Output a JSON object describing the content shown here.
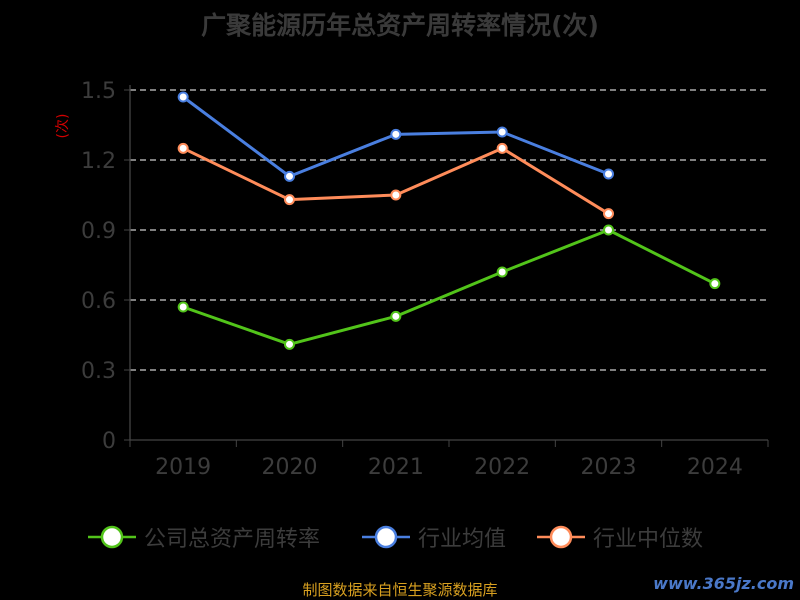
{
  "chart_data": {
    "type": "line",
    "title": "广聚能源历年总资产周转率情况(次)",
    "ylabel": "(次)",
    "categories": [
      "2019",
      "2020",
      "2021",
      "2022",
      "2023",
      "2024"
    ],
    "ylim": [
      0,
      1.5
    ],
    "yticks": [
      "0",
      "0.3",
      "0.6",
      "0.9",
      "1.2",
      "1.5"
    ],
    "grid": true,
    "legend_position": "bottom",
    "series": [
      {
        "name": "公司总资产周转率",
        "color": "#52c41a",
        "values": [
          0.57,
          0.41,
          0.53,
          0.72,
          0.9,
          0.67
        ]
      },
      {
        "name": "行业均值",
        "color": "#4a7fe0",
        "values": [
          1.47,
          1.13,
          1.31,
          1.32,
          1.14,
          null
        ]
      },
      {
        "name": "行业中位数",
        "color": "#ff8c5a",
        "values": [
          1.25,
          1.03,
          1.05,
          1.25,
          0.97,
          null
        ]
      }
    ]
  },
  "source_note": "制图数据来自恒生聚源数据库",
  "watermark": "www.365jz.com"
}
